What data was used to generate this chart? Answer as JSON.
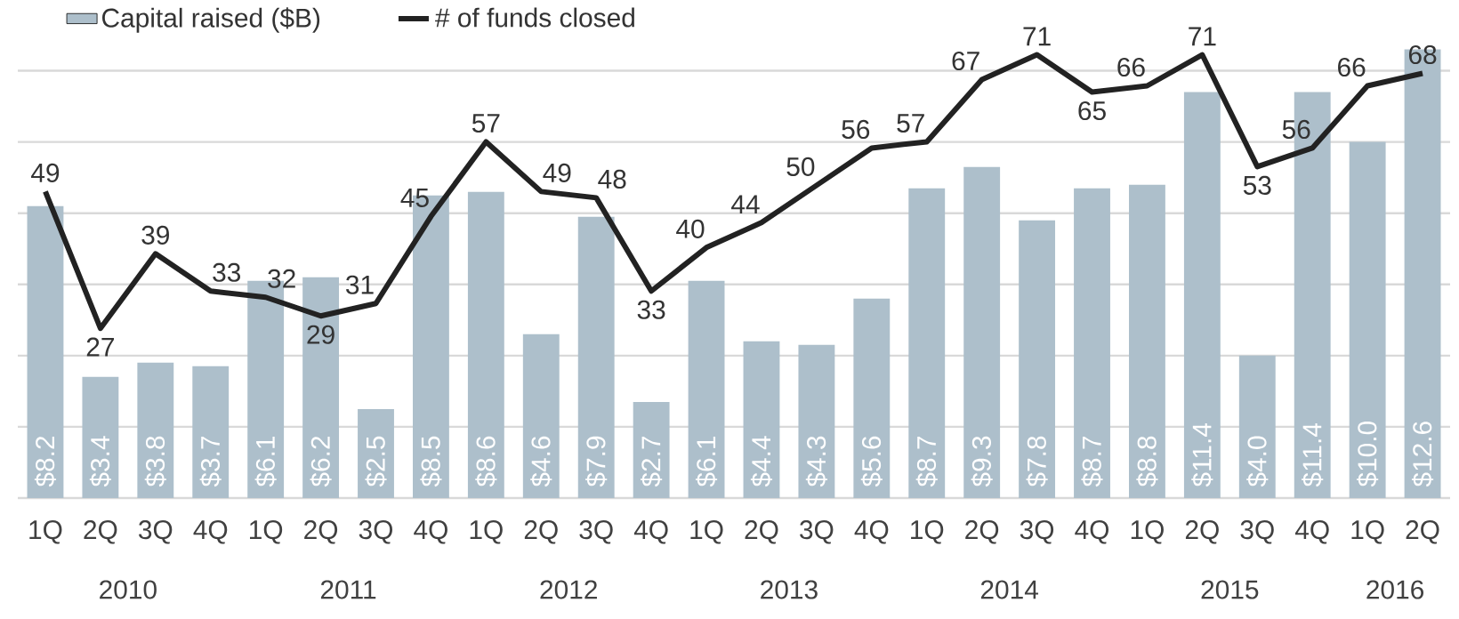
{
  "chart_data": {
    "type": "bar",
    "categories": [
      "1Q",
      "2Q",
      "3Q",
      "4Q",
      "1Q",
      "2Q",
      "3Q",
      "4Q",
      "1Q",
      "2Q",
      "3Q",
      "4Q",
      "1Q",
      "2Q",
      "3Q",
      "4Q",
      "1Q",
      "2Q",
      "3Q",
      "4Q",
      "1Q",
      "2Q",
      "3Q",
      "4Q",
      "1Q",
      "2Q"
    ],
    "series": [
      {
        "name": "Capital raised ($B)",
        "color": "#adbfcb",
        "values": [
          8.2,
          3.4,
          3.8,
          3.7,
          6.1,
          6.2,
          2.5,
          8.5,
          8.6,
          4.6,
          7.9,
          2.7,
          6.1,
          4.4,
          4.3,
          5.6,
          8.7,
          9.3,
          7.8,
          8.7,
          8.8,
          11.4,
          4.0,
          11.4,
          10.0,
          12.6
        ],
        "value_labels": [
          "$8.2",
          "$3.4",
          "$3.8",
          "$3.7",
          "$6.1",
          "$6.2",
          "$2.5",
          "$8.5",
          "$8.6",
          "$4.6",
          "$7.9",
          "$2.7",
          "$6.1",
          "$4.4",
          "$4.3",
          "$5.6",
          "$8.7",
          "$9.3",
          "$7.8",
          "$8.7",
          "$8.8",
          "$11.4",
          "$4.0",
          "$11.4",
          "$10.0",
          "$12.6"
        ]
      },
      {
        "name": "# of funds closed",
        "type": "line",
        "axis": "y2",
        "color": "#222222",
        "values": [
          49,
          27,
          39,
          33,
          32,
          29,
          31,
          45,
          57,
          49,
          48,
          33,
          40,
          44,
          50,
          56,
          57,
          67,
          71,
          65,
          66,
          71,
          53,
          56,
          66,
          68
        ],
        "value_labels": [
          "49",
          "27",
          "39",
          "33",
          "32",
          "29",
          "31",
          "45",
          "57",
          "49",
          "48",
          "33",
          "40",
          "44",
          "50",
          "56",
          "57",
          "67",
          "71",
          "65",
          "66",
          "71",
          "53",
          "56",
          "66",
          "68"
        ]
      }
    ],
    "yticks": [
      {
        "value": 0,
        "label": null
      },
      {
        "value": 2,
        "label": null
      },
      {
        "value": 4,
        "label": null
      },
      {
        "value": 6,
        "label": null
      },
      {
        "value": 8,
        "label": null
      },
      {
        "value": 10,
        "label": null
      },
      {
        "value": 12,
        "label": null
      }
    ],
    "annotations": [
      "2010",
      "2011",
      "2012",
      "2013",
      "2014",
      "2015",
      "2016"
    ],
    "grid": "y",
    "legend": "top",
    "tick_labels": "x",
    "line_style": "solid"
  }
}
